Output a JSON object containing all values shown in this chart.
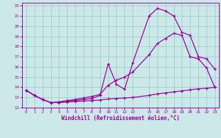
{
  "xlabel": "Windchill (Refroidissement éolien,°C)",
  "bg_color": "#cce8e8",
  "grid_color": "#99cccc",
  "line_color": "#990099",
  "xlim": [
    -0.5,
    23.5
  ],
  "ylim": [
    12,
    22.3
  ],
  "xticks": [
    0,
    1,
    2,
    3,
    4,
    5,
    6,
    7,
    8,
    9,
    10,
    11,
    12,
    13,
    15,
    16,
    17,
    18,
    19,
    20,
    21,
    22,
    23
  ],
  "yticks": [
    12,
    13,
    14,
    15,
    16,
    17,
    18,
    19,
    20,
    21,
    22
  ],
  "series1_x": [
    0,
    1,
    2,
    3,
    4,
    5,
    6,
    7,
    8,
    9,
    10,
    11,
    12,
    13,
    15,
    16,
    17,
    18,
    19,
    20,
    21,
    22,
    23
  ],
  "series1_y": [
    13.7,
    13.2,
    12.8,
    12.5,
    12.5,
    12.55,
    12.6,
    12.65,
    12.7,
    12.75,
    12.85,
    12.9,
    12.95,
    13.0,
    13.2,
    13.35,
    13.45,
    13.55,
    13.65,
    13.75,
    13.85,
    13.9,
    14.0
  ],
  "series2_x": [
    0,
    1,
    2,
    3,
    4,
    5,
    6,
    7,
    8,
    9,
    10,
    11,
    12,
    13,
    15,
    16,
    17,
    18,
    19,
    20,
    21,
    22,
    23
  ],
  "series2_y": [
    13.7,
    13.2,
    12.8,
    12.5,
    12.55,
    12.7,
    12.8,
    12.95,
    13.1,
    13.3,
    14.2,
    14.7,
    15.0,
    15.5,
    17.2,
    18.3,
    18.8,
    19.3,
    19.1,
    17.0,
    16.8,
    15.9,
    14.0
  ],
  "series3_x": [
    0,
    1,
    2,
    3,
    4,
    5,
    6,
    7,
    8,
    9,
    10,
    11,
    12,
    13,
    15,
    16,
    17,
    18,
    19,
    20,
    21,
    22,
    23
  ],
  "series3_y": [
    13.7,
    13.2,
    12.8,
    12.5,
    12.55,
    12.65,
    12.7,
    12.8,
    12.9,
    13.2,
    16.3,
    14.3,
    13.8,
    16.4,
    21.0,
    21.75,
    21.5,
    21.0,
    19.4,
    19.1,
    17.0,
    16.8,
    15.8
  ]
}
